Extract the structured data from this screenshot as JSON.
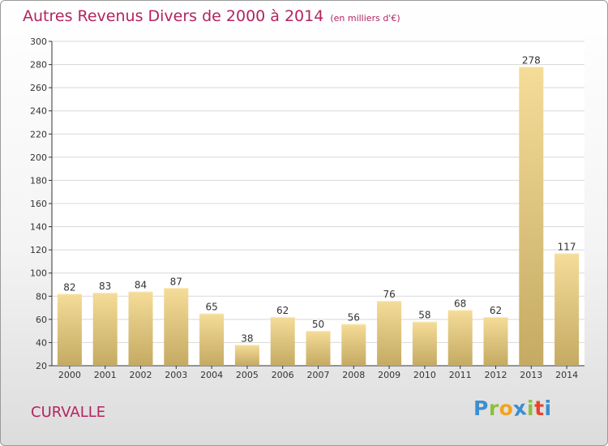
{
  "title": "Autres Revenus Divers de 2000 à 2014",
  "subtitle": "(en milliers d'€)",
  "commune": "CURVALLE",
  "logo": {
    "text": "Proxiti",
    "letters": [
      {
        "char": "P",
        "color": "#3b8ed0"
      },
      {
        "char": "r",
        "color": "#8cbf3f"
      },
      {
        "char": "o",
        "color": "#f2a31b"
      },
      {
        "char": "x",
        "color": "#3b8ed0"
      },
      {
        "char": "i",
        "color": "#8cbf3f"
      },
      {
        "char": "t",
        "color": "#e8452c"
      },
      {
        "char": "i",
        "color": "#3b8ed0"
      }
    ]
  },
  "colors": {
    "title": "#b3245f",
    "bar_top": "#f5dc98",
    "bar_bottom": "#c4aa62",
    "grid": "#d8d8d8",
    "axis": "#333333"
  },
  "chart_data": {
    "type": "bar",
    "title": "Autres Revenus Divers de 2000 à 2014",
    "subtitle": "(en milliers d'€)",
    "categories": [
      "2000",
      "2001",
      "2002",
      "2003",
      "2004",
      "2005",
      "2006",
      "2007",
      "2008",
      "2009",
      "2010",
      "2011",
      "2012",
      "2013",
      "2014"
    ],
    "values": [
      82,
      83,
      84,
      87,
      65,
      38,
      62,
      50,
      56,
      76,
      58,
      68,
      62,
      278,
      117
    ],
    "ylim": [
      20,
      300
    ],
    "yticks": [
      20,
      40,
      60,
      80,
      100,
      120,
      140,
      160,
      180,
      200,
      220,
      240,
      260,
      280,
      300
    ],
    "grid": true,
    "data_labels": true
  }
}
